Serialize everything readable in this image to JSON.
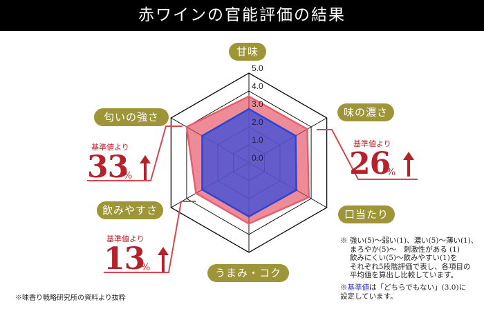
{
  "header": {
    "title": "赤ワインの官能評価の結果"
  },
  "chart_data": {
    "type": "radar",
    "axes": [
      "甘味",
      "味の濃さ",
      "口当たり",
      "うまみ・コク",
      "飲みやすさ",
      "匂いの強さ"
    ],
    "tick_labels": [
      "0.0",
      "1.0",
      "2.0",
      "3.0",
      "4.0",
      "5.0"
    ],
    "range": [
      0,
      5
    ],
    "series": [
      {
        "values": [
          3.7,
          3.75,
          3.85,
          3.4,
          3.4,
          4.0
        ],
        "color": "#e35f6c"
      },
      {
        "values": [
          3.0,
          3.0,
          3.05,
          3.0,
          3.0,
          3.0
        ],
        "color": "#3a4fd0"
      }
    ]
  },
  "stats": [
    {
      "label": "基準値より",
      "value": "33",
      "unit": "%"
    },
    {
      "label": "基準値より",
      "value": "26",
      "unit": "%"
    },
    {
      "label": "基準値より",
      "value": "13",
      "unit": "%"
    }
  ],
  "notes": {
    "main": "※ 強い(5)～弱い(1)、濃い(5)～薄い(1)、\n　 まろやか(5)～　刺激性がある (1)\n　 飲みにくい(5)～飲みやすい(1)を\n　 それぞれ5段階評価で表し、各項目の\n　 平均値を算出し比較しています。",
    "basis_prefix": "※",
    "basis_highlight": "基準値",
    "basis_rest": "は「どちらでもない」(3.0)に\n設定しています。"
  },
  "source": "※味香り戦略研究所の資料より抜粋",
  "colors": {
    "accent": "#b4232b",
    "pill": "#9d9538",
    "base": "#3a4fd0",
    "wine": "#e35f6c"
  }
}
